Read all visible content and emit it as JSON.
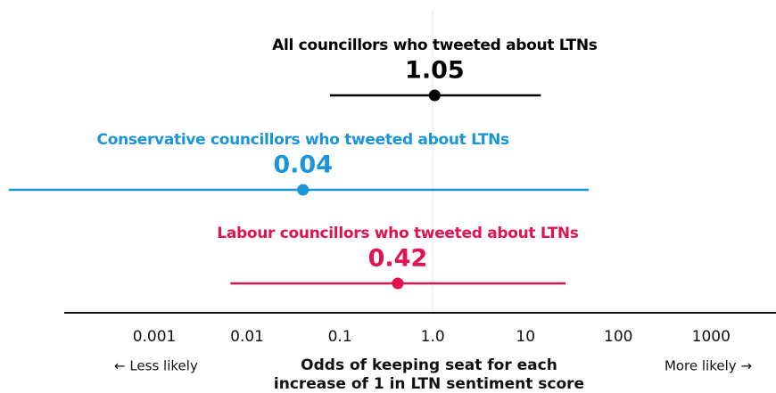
{
  "chart_data": {
    "type": "forest",
    "log_x": true,
    "xlim": [
      0.0001,
      5000
    ],
    "xticks": [
      0.001,
      0.01,
      0.1,
      {
        "value": 1,
        "label": "1.0"
      },
      10,
      100,
      1000
    ],
    "reference_line": 1,
    "series": [
      {
        "name": "All councillors who tweeted about LTNs",
        "color": "#000000",
        "value": 1.05,
        "lower": 0.078,
        "upper": 14.6
      },
      {
        "name": "Conservative councillors who tweeted about LTNs",
        "color": "#1a96d8",
        "value": 0.04,
        "lower": 2.7e-05,
        "upper": 48
      },
      {
        "name": "Labour councillors who tweeted about LTNs",
        "color": "#e0134f",
        "value": 0.42,
        "lower": 0.0066,
        "upper": 27
      }
    ],
    "xlabel": [
      "Odds of keeping seat for each",
      "increase of 1 in LTN sentiment score"
    ],
    "annotations": [
      "← Less likely",
      "More likely →"
    ]
  }
}
